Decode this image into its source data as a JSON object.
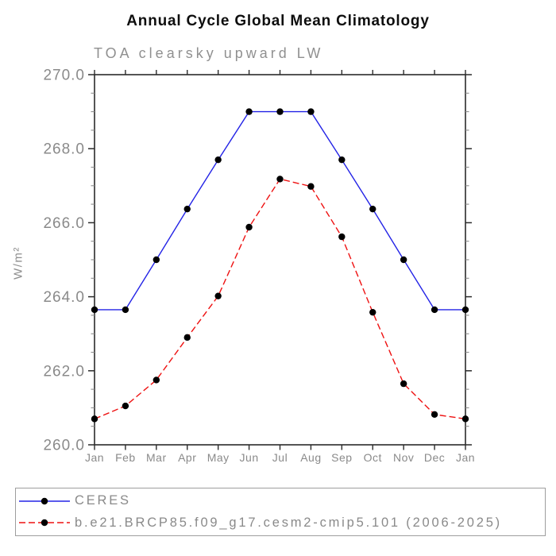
{
  "page": {
    "background": "#ffffff"
  },
  "chart_data": {
    "type": "line",
    "title": "Annual Cycle Global Mean Climatology",
    "subtitle": "TOA clearsky upward LW",
    "grid": false,
    "legend_position": "bottom-outside",
    "marker": "filled-circle",
    "marker_color": "#000000",
    "axis_color": "#2b2b2b",
    "minor_tick_color": "#8c8c8c",
    "label_color": "#8a8a8a",
    "x_axis": {
      "labels": [
        "Jan",
        "Feb",
        "Mar",
        "Apr",
        "May",
        "Jun",
        "Jul",
        "Aug",
        "Sep",
        "Oct",
        "Nov",
        "Dec",
        "Jan"
      ]
    },
    "y_axis": {
      "label": "W/m²",
      "min": 260,
      "max": 270,
      "minor_tick_step": 0.5,
      "major_ticks": [
        {
          "value": 270,
          "label": "270.0"
        },
        {
          "value": 268,
          "label": "268.0"
        },
        {
          "value": 266,
          "label": "266.0"
        },
        {
          "value": 264,
          "label": "264.0"
        },
        {
          "value": 262,
          "label": "262.0"
        },
        {
          "value": 260,
          "label": "260.0"
        }
      ]
    },
    "series": [
      {
        "name": "CERES",
        "color": "#2323e6",
        "line_style": "solid",
        "values": [
          263.65,
          263.65,
          265.0,
          266.37,
          267.7,
          269.0,
          269.0,
          269.0,
          267.7,
          266.37,
          265.0,
          263.65,
          263.65
        ]
      },
      {
        "name": "b.e21.BRCP85.f09_g17.cesm2-cmip5.101 (2006-2025)",
        "color": "#ee1111",
        "line_style": "dashed",
        "values": [
          260.7,
          261.05,
          261.75,
          262.9,
          264.02,
          265.88,
          267.18,
          266.98,
          265.62,
          263.58,
          261.65,
          260.82,
          260.7
        ]
      }
    ]
  }
}
